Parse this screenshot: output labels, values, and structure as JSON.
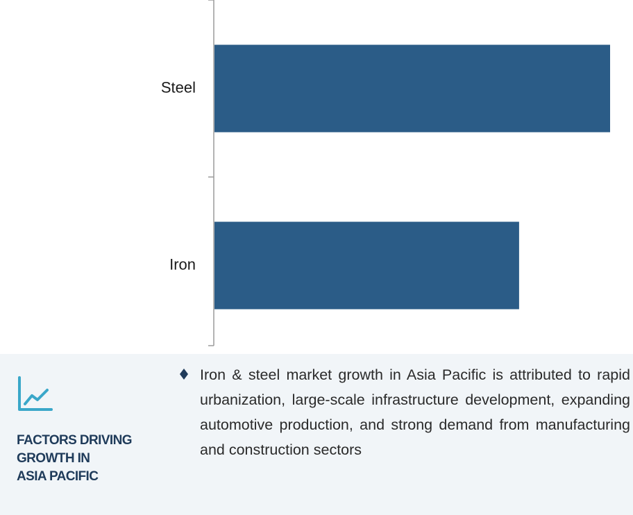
{
  "chart_data": {
    "type": "bar",
    "orientation": "horizontal",
    "categories": [
      "Steel",
      "Iron"
    ],
    "values": [
      100,
      77
    ],
    "bar_color": "#2b5c87",
    "axis_color": "#9a9a9a",
    "title": "",
    "xlabel": "",
    "ylabel": "",
    "xlim": [
      0,
      100
    ],
    "grid": false
  },
  "factors": {
    "heading_lines": [
      "FACTORS DRIVING",
      "GROWTH IN",
      "ASIA PACIFIC"
    ],
    "text": "Iron & steel market growth in Asia Pacific is attributed to rapid urbanization, large-scale infrastructure development, expanding automotive production, and strong demand from manufacturing and construction sectors",
    "icon": "trend-line-chart-icon",
    "bullet_icon": "diamond-bullet-icon",
    "accent_color": "#3aa7c9",
    "heading_color": "#1f3b5a",
    "panel_background": "#f1f5f8"
  }
}
